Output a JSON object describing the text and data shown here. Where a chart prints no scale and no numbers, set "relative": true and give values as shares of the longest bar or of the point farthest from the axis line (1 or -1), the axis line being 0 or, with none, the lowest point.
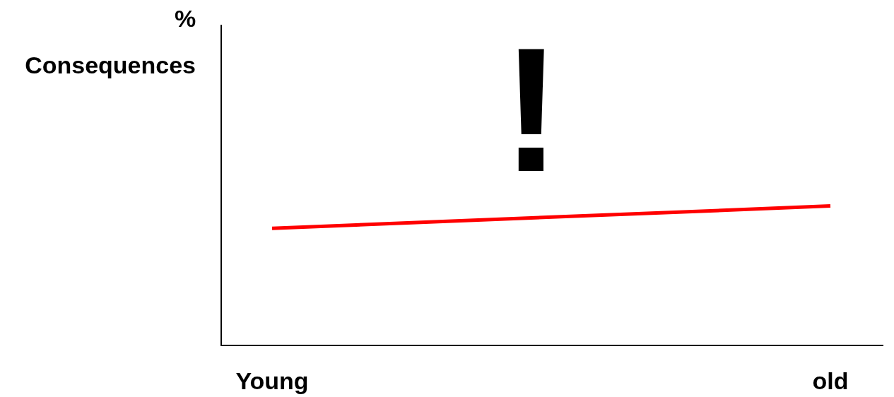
{
  "chart_data": {
    "type": "line",
    "relative": true,
    "categories": [
      "Young",
      "old"
    ],
    "series": [
      {
        "color": "#ff0000",
        "values": [
          0.84,
          1
        ]
      }
    ],
    "annotations": [
      "%\nConsequences",
      "!"
    ],
    "marker": "none",
    "line_style": "solid"
  }
}
